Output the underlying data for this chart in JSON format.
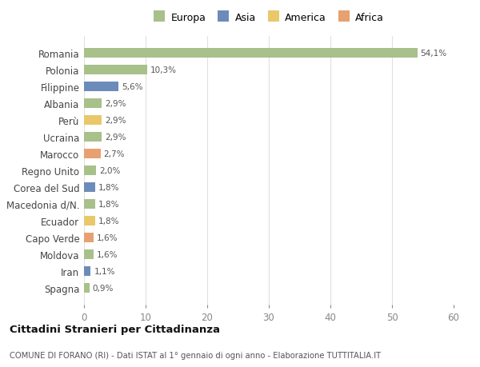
{
  "countries": [
    "Romania",
    "Polonia",
    "Filippine",
    "Albania",
    "Perù",
    "Ucraina",
    "Marocco",
    "Regno Unito",
    "Corea del Sud",
    "Macedonia d/N.",
    "Ecuador",
    "Capo Verde",
    "Moldova",
    "Iran",
    "Spagna"
  ],
  "values": [
    54.1,
    10.3,
    5.6,
    2.9,
    2.9,
    2.9,
    2.7,
    2.0,
    1.8,
    1.8,
    1.8,
    1.6,
    1.6,
    1.1,
    0.9
  ],
  "labels": [
    "54,1%",
    "10,3%",
    "5,6%",
    "2,9%",
    "2,9%",
    "2,9%",
    "2,7%",
    "2,0%",
    "1,8%",
    "1,8%",
    "1,8%",
    "1,6%",
    "1,6%",
    "1,1%",
    "0,9%"
  ],
  "colors": [
    "#a8c08a",
    "#a8c08a",
    "#6b8cba",
    "#a8c08a",
    "#e8c86a",
    "#a8c08a",
    "#e8a070",
    "#a8c08a",
    "#6b8cba",
    "#a8c08a",
    "#e8c86a",
    "#e8a070",
    "#a8c08a",
    "#6b8cba",
    "#a8c08a"
  ],
  "continent_colors": {
    "Europa": "#a8c08a",
    "Asia": "#6b8cba",
    "America": "#e8c86a",
    "Africa": "#e8a070"
  },
  "xlim": [
    0,
    60
  ],
  "xticks": [
    0,
    10,
    20,
    30,
    40,
    50,
    60
  ],
  "title": "Cittadini Stranieri per Cittadinanza",
  "subtitle": "COMUNE DI FORANO (RI) - Dati ISTAT al 1° gennaio di ogni anno - Elaborazione TUTTITALIA.IT",
  "bg_color": "#ffffff",
  "grid_color": "#e0e0e0",
  "bar_height": 0.55
}
